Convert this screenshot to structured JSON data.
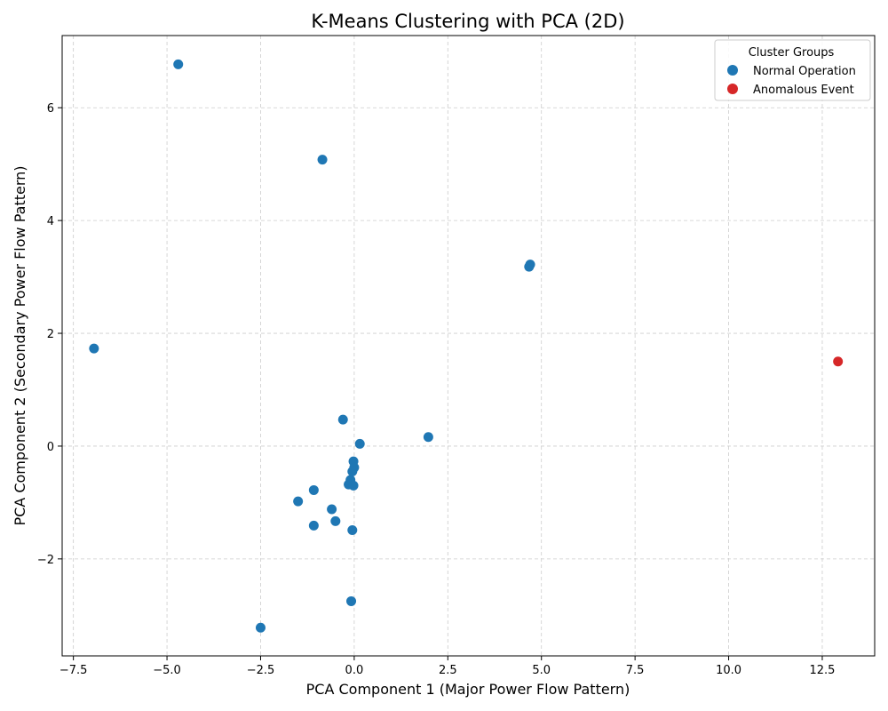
{
  "chart_data": {
    "type": "scatter",
    "title": "K-Means Clustering with PCA (2D)",
    "xlabel": "PCA Component 1 (Major Power Flow Pattern)",
    "ylabel": "PCA Component 2 (Secondary Power Flow Pattern)",
    "xlim": [
      -7.8,
      13.9
    ],
    "ylim": [
      -3.72,
      7.28
    ],
    "xticks": [
      -7.5,
      -5.0,
      -2.5,
      0.0,
      2.5,
      5.0,
      7.5,
      10.0,
      12.5
    ],
    "xtick_labels": [
      "−7.5",
      "−5.0",
      "−2.5",
      "0.0",
      "2.5",
      "5.0",
      "7.5",
      "10.0",
      "12.5"
    ],
    "yticks": [
      -2,
      0,
      2,
      4,
      6
    ],
    "ytick_labels": [
      "−2",
      "0",
      "2",
      "4",
      "6"
    ],
    "grid": true,
    "legend": {
      "title": "Cluster Groups",
      "position": "top-right",
      "entries": [
        {
          "label": "Normal Operation",
          "color": "#1f77b4"
        },
        {
          "label": "Anomalous Event",
          "color": "#d62728"
        }
      ]
    },
    "series": [
      {
        "name": "Normal Operation",
        "color": "#1f77b4",
        "points": [
          [
            -4.7,
            6.77
          ],
          [
            -0.85,
            5.08
          ],
          [
            4.7,
            3.22
          ],
          [
            4.67,
            3.18
          ],
          [
            -6.95,
            1.73
          ],
          [
            -0.3,
            0.47
          ],
          [
            0.15,
            0.04
          ],
          [
            1.98,
            0.16
          ],
          [
            -0.02,
            -0.27
          ],
          [
            0.0,
            -0.38
          ],
          [
            -0.05,
            -0.45
          ],
          [
            -0.1,
            -0.6
          ],
          [
            -0.15,
            -0.68
          ],
          [
            -0.02,
            -0.7
          ],
          [
            -1.08,
            -0.78
          ],
          [
            -1.5,
            -0.98
          ],
          [
            -0.6,
            -1.12
          ],
          [
            -0.5,
            -1.33
          ],
          [
            -1.08,
            -1.41
          ],
          [
            -0.05,
            -1.49
          ],
          [
            -0.08,
            -2.75
          ],
          [
            -2.5,
            -3.22
          ]
        ]
      },
      {
        "name": "Anomalous Event",
        "color": "#d62728",
        "points": [
          [
            12.92,
            1.5
          ]
        ]
      }
    ]
  }
}
